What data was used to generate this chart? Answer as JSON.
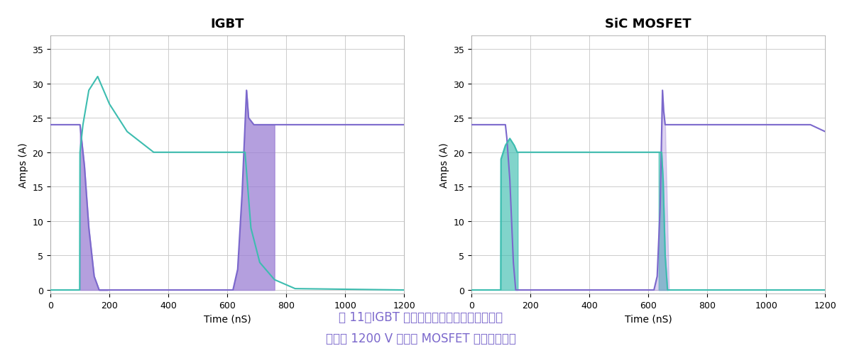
{
  "title_left": "IGBT",
  "title_right": "SiC MOSFET",
  "xlabel": "Time (nS)",
  "ylabel": "Amps (A)",
  "xlim": [
    0,
    1200
  ],
  "ylim": [
    -0.5,
    37
  ],
  "yticks": [
    0,
    5,
    10,
    15,
    20,
    25,
    30,
    35
  ],
  "xticks": [
    0,
    200,
    400,
    600,
    800,
    1000,
    1200
  ],
  "color_purple": "#7B68CC",
  "color_teal": "#3DBDB0",
  "fill_purple": "#9B7FD4",
  "fill_teal": "#3DBDB0",
  "caption_line1": "图 11：IGBT 尾电流对关断损耗的影响（右）",
  "caption_line2": "与通过 1200 V 碳化硅 MOSFET 消除的尾电流",
  "caption_color": "#7B68CC",
  "bg_color": "#FFFFFF",
  "grid_color": "#CCCCCC",
  "title_fontsize": 13,
  "axis_label_fontsize": 10,
  "tick_fontsize": 9,
  "caption_fontsize": 12
}
